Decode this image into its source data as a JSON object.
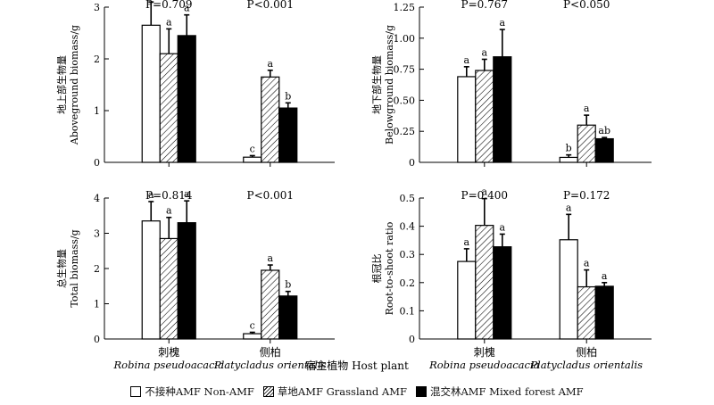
{
  "chart_data": [
    {
      "type": "bar",
      "panel": "aboveground",
      "ylabel_cn": "地上部生物量",
      "ylabel_en": "Aboveground biomass/g",
      "ylim": [
        0,
        3
      ],
      "yticks": [
        "0",
        "1",
        "2",
        "3"
      ],
      "ytick_values": [
        0,
        1,
        2,
        3
      ],
      "categories": [
        "Robina pseudoacacia",
        "Platycladus orientalis"
      ],
      "p_values": [
        "P=0.709",
        "P<0.001"
      ],
      "series": [
        {
          "name": "Non-AMF",
          "values": [
            2.65,
            0.1
          ],
          "errors": [
            0.45,
            0.03
          ],
          "letters": [
            "a",
            "c"
          ]
        },
        {
          "name": "Grassland AMF",
          "values": [
            2.1,
            1.65
          ],
          "errors": [
            0.48,
            0.13
          ],
          "letters": [
            "a",
            "a"
          ]
        },
        {
          "name": "Mixed forest AMF",
          "values": [
            2.45,
            1.05
          ],
          "errors": [
            0.4,
            0.1
          ],
          "letters": [
            "a",
            "b"
          ]
        }
      ]
    },
    {
      "type": "bar",
      "panel": "belowground",
      "ylabel_cn": "地下部生物量",
      "ylabel_en": "Belowground biomass/g",
      "ylim": [
        0,
        1.25
      ],
      "yticks": [
        "0",
        "0.25",
        "0.50",
        "0.75",
        "1.00",
        "1.25"
      ],
      "ytick_values": [
        0,
        0.25,
        0.5,
        0.75,
        1.0,
        1.25
      ],
      "categories": [
        "Robina pseudoacacia",
        "Platycladus orientalis"
      ],
      "p_values": [
        "P=0.767",
        "P<0.050"
      ],
      "series": [
        {
          "name": "Non-AMF",
          "values": [
            0.69,
            0.04
          ],
          "errors": [
            0.08,
            0.02
          ],
          "letters": [
            "a",
            "b"
          ]
        },
        {
          "name": "Grassland AMF",
          "values": [
            0.74,
            0.3
          ],
          "errors": [
            0.09,
            0.08
          ],
          "letters": [
            "a",
            "a"
          ]
        },
        {
          "name": "Mixed forest AMF",
          "values": [
            0.85,
            0.19
          ],
          "errors": [
            0.22,
            0.01
          ],
          "letters": [
            "a",
            "ab"
          ]
        }
      ]
    },
    {
      "type": "bar",
      "panel": "total",
      "ylabel_cn": "总生物量",
      "ylabel_en": "Total biomass/g",
      "ylim": [
        0,
        4
      ],
      "yticks": [
        "0",
        "1",
        "2",
        "3",
        "4"
      ],
      "ytick_values": [
        0,
        1,
        2,
        3,
        4
      ],
      "categories": [
        "Robina pseudoacacia",
        "Platycladus orientalis"
      ],
      "p_values": [
        "P=0.814",
        "P<0.001"
      ],
      "series": [
        {
          "name": "Non-AMF",
          "values": [
            3.35,
            0.15
          ],
          "errors": [
            0.55,
            0.04
          ],
          "letters": [
            "a",
            "c"
          ]
        },
        {
          "name": "Grassland AMF",
          "values": [
            2.85,
            1.95
          ],
          "errors": [
            0.6,
            0.15
          ],
          "letters": [
            "a",
            "a"
          ]
        },
        {
          "name": "Mixed forest AMF",
          "values": [
            3.3,
            1.22
          ],
          "errors": [
            0.62,
            0.13
          ],
          "letters": [
            "a",
            "b"
          ]
        }
      ]
    },
    {
      "type": "bar",
      "panel": "root_to_shoot",
      "ylabel_cn": "根冠比",
      "ylabel_en": "Root-to-shoot ratio",
      "ylim": [
        0,
        0.5
      ],
      "yticks": [
        "0",
        "0.1",
        "0.2",
        "0.3",
        "0.4",
        "0.5"
      ],
      "ytick_values": [
        0,
        0.1,
        0.2,
        0.3,
        0.4,
        0.5
      ],
      "categories": [
        "Robina pseudoacacia",
        "Platycladus orientalis"
      ],
      "p_values": [
        "P=0.400",
        "P=0.172"
      ],
      "series": [
        {
          "name": "Non-AMF",
          "values": [
            0.275,
            0.352
          ],
          "errors": [
            0.045,
            0.09
          ],
          "letters": [
            "a",
            "a"
          ]
        },
        {
          "name": "Grassland AMF",
          "values": [
            0.403,
            0.185
          ],
          "errors": [
            0.095,
            0.06
          ],
          "letters": [
            "a",
            "a"
          ]
        },
        {
          "name": "Mixed forest AMF",
          "values": [
            0.327,
            0.187
          ],
          "errors": [
            0.045,
            0.013
          ],
          "letters": [
            "a",
            "a"
          ]
        }
      ]
    }
  ],
  "xaxis": {
    "host_cn": [
      "刺槐",
      "侧柏"
    ],
    "host_en": [
      "Robina pseudoacacia",
      "Platycladus orientalis"
    ],
    "title_cn": "宿主植物",
    "title_en": "Host plant"
  },
  "legend": {
    "items": [
      {
        "label": "不接种AMF Non-AMF",
        "pattern": "open"
      },
      {
        "label": "草地AMF Grassland AMF",
        "pattern": "hatched"
      },
      {
        "label": "混交林AMF Mixed forest AMF",
        "pattern": "solid"
      }
    ]
  }
}
